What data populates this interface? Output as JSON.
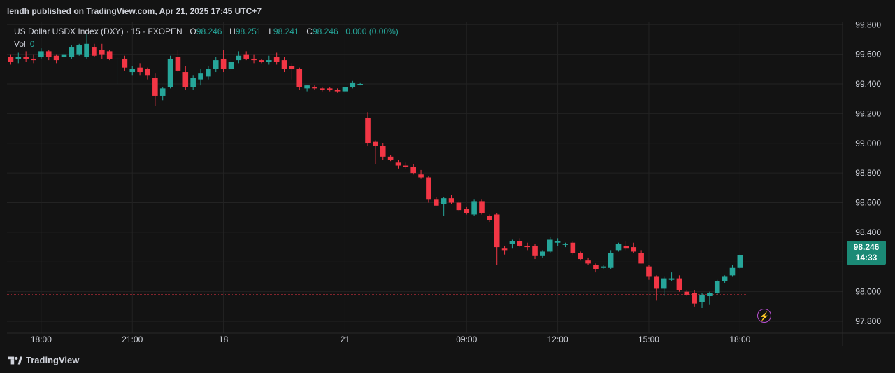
{
  "header": {
    "publish_line": "lendh published on TradingView.com, Apr 21, 2025 17:45 UTC+7"
  },
  "legend": {
    "symbol": "US Dollar USDX Index (DXY) · 15 · FXOPEN",
    "o_label": "O",
    "o_value": "98.246",
    "h_label": "H",
    "h_value": "98.251",
    "l_label": "L",
    "l_value": "98.241",
    "c_label": "C",
    "c_value": "98.246",
    "change": "0.000 (0.00%)",
    "vol_label": "Vol",
    "vol_value": "0"
  },
  "price_tag": {
    "price": "98.246",
    "countdown": "14:33"
  },
  "footer": {
    "brand": "TradingView",
    "alert_icon": "lightning-icon"
  },
  "colors": {
    "up": "#26a69a",
    "down": "#f23645",
    "background": "#131313",
    "grid": "#232323",
    "price_line": "#1b8a76",
    "ref_line": "#f23645"
  },
  "chart_data": {
    "type": "candlestick",
    "y_ticks": [
      "99.800",
      "99.600",
      "99.400",
      "99.200",
      "99.000",
      "98.800",
      "98.600",
      "98.400",
      "98.200",
      "98.000",
      "97.800"
    ],
    "ylim": [
      97.72,
      99.82
    ],
    "x_ticks": [
      {
        "label": "18:00",
        "index": 4.5
      },
      {
        "label": "21:00",
        "index": 16.5
      },
      {
        "label": "18",
        "index": 28.5
      },
      {
        "label": "21",
        "index": 44.5
      },
      {
        "label": "09:00",
        "index": 60.5
      },
      {
        "label": "12:00",
        "index": 72.5
      },
      {
        "label": "15:00",
        "index": 84.5
      },
      {
        "label": "18:00",
        "index": 96.5
      }
    ],
    "x_range": [
      0,
      110
    ],
    "last_price": 98.246,
    "reference_price": 97.98,
    "candles": [
      {
        "o": 99.58,
        "h": 99.6,
        "l": 99.53,
        "c": 99.55
      },
      {
        "o": 99.57,
        "h": 99.61,
        "l": 99.54,
        "c": 99.58
      },
      {
        "o": 99.58,
        "h": 99.62,
        "l": 99.55,
        "c": 99.57
      },
      {
        "o": 99.57,
        "h": 99.6,
        "l": 99.54,
        "c": 99.56
      },
      {
        "o": 99.58,
        "h": 99.64,
        "l": 99.57,
        "c": 99.62
      },
      {
        "o": 99.62,
        "h": 99.63,
        "l": 99.56,
        "c": 99.58
      },
      {
        "o": 99.59,
        "h": 99.6,
        "l": 99.54,
        "c": 99.56
      },
      {
        "o": 99.58,
        "h": 99.61,
        "l": 99.57,
        "c": 99.6
      },
      {
        "o": 99.58,
        "h": 99.66,
        "l": 99.57,
        "c": 99.65
      },
      {
        "o": 99.6,
        "h": 99.67,
        "l": 99.59,
        "c": 99.66
      },
      {
        "o": 99.58,
        "h": 99.74,
        "l": 99.57,
        "c": 99.67
      },
      {
        "o": 99.65,
        "h": 99.67,
        "l": 99.58,
        "c": 99.59
      },
      {
        "o": 99.63,
        "h": 99.67,
        "l": 99.57,
        "c": 99.6
      },
      {
        "o": 99.62,
        "h": 99.63,
        "l": 99.56,
        "c": 99.57
      },
      {
        "o": 99.57,
        "h": 99.58,
        "l": 99.4,
        "c": 99.57
      },
      {
        "o": 99.57,
        "h": 99.59,
        "l": 99.49,
        "c": 99.51
      },
      {
        "o": 99.48,
        "h": 99.52,
        "l": 99.46,
        "c": 99.5
      },
      {
        "o": 99.51,
        "h": 99.54,
        "l": 99.46,
        "c": 99.48
      },
      {
        "o": 99.5,
        "h": 99.51,
        "l": 99.43,
        "c": 99.46
      },
      {
        "o": 99.44,
        "h": 99.47,
        "l": 99.25,
        "c": 99.32
      },
      {
        "o": 99.32,
        "h": 99.38,
        "l": 99.29,
        "c": 99.37
      },
      {
        "o": 99.38,
        "h": 99.59,
        "l": 99.37,
        "c": 99.57
      },
      {
        "o": 99.58,
        "h": 99.63,
        "l": 99.48,
        "c": 99.49
      },
      {
        "o": 99.48,
        "h": 99.52,
        "l": 99.36,
        "c": 99.38
      },
      {
        "o": 99.38,
        "h": 99.46,
        "l": 99.36,
        "c": 99.44
      },
      {
        "o": 99.43,
        "h": 99.5,
        "l": 99.39,
        "c": 99.47
      },
      {
        "o": 99.45,
        "h": 99.52,
        "l": 99.43,
        "c": 99.5
      },
      {
        "o": 99.5,
        "h": 99.58,
        "l": 99.48,
        "c": 99.56
      },
      {
        "o": 99.57,
        "h": 99.63,
        "l": 99.48,
        "c": 99.5
      },
      {
        "o": 99.5,
        "h": 99.58,
        "l": 99.49,
        "c": 99.55
      },
      {
        "o": 99.56,
        "h": 99.62,
        "l": 99.54,
        "c": 99.59
      },
      {
        "o": 99.6,
        "h": 99.62,
        "l": 99.56,
        "c": 99.57
      },
      {
        "o": 99.57,
        "h": 99.6,
        "l": 99.54,
        "c": 99.56
      },
      {
        "o": 99.56,
        "h": 99.57,
        "l": 99.54,
        "c": 99.55
      },
      {
        "o": 99.55,
        "h": 99.59,
        "l": 99.53,
        "c": 99.56
      },
      {
        "o": 99.58,
        "h": 99.61,
        "l": 99.53,
        "c": 99.55
      },
      {
        "o": 99.56,
        "h": 99.58,
        "l": 99.48,
        "c": 99.5
      },
      {
        "o": 99.52,
        "h": 99.54,
        "l": 99.43,
        "c": 99.5
      },
      {
        "o": 99.5,
        "h": 99.51,
        "l": 99.36,
        "c": 99.38
      },
      {
        "o": 99.37,
        "h": 99.39,
        "l": 99.35,
        "c": 99.39
      },
      {
        "o": 99.38,
        "h": 99.39,
        "l": 99.36,
        "c": 99.37
      },
      {
        "o": 99.37,
        "h": 99.38,
        "l": 99.35,
        "c": 99.36
      },
      {
        "o": 99.37,
        "h": 99.38,
        "l": 99.35,
        "c": 99.36
      },
      {
        "o": 99.36,
        "h": 99.37,
        "l": 99.34,
        "c": 99.35
      },
      {
        "o": 99.35,
        "h": 99.38,
        "l": 99.34,
        "c": 99.38
      },
      {
        "o": 99.38,
        "h": 99.42,
        "l": 99.37,
        "c": 99.41
      },
      {
        "o": 99.4,
        "h": 99.41,
        "l": 99.39,
        "c": 99.4
      },
      {
        "o": 99.17,
        "h": 99.21,
        "l": 98.98,
        "c": 99.0
      },
      {
        "o": 99.01,
        "h": 99.02,
        "l": 98.86,
        "c": 98.98
      },
      {
        "o": 98.98,
        "h": 99.0,
        "l": 98.89,
        "c": 98.91
      },
      {
        "o": 98.91,
        "h": 98.92,
        "l": 98.88,
        "c": 98.89
      },
      {
        "o": 98.87,
        "h": 98.89,
        "l": 98.83,
        "c": 98.85
      },
      {
        "o": 98.85,
        "h": 98.87,
        "l": 98.83,
        "c": 98.84
      },
      {
        "o": 98.84,
        "h": 98.86,
        "l": 98.79,
        "c": 98.8
      },
      {
        "o": 98.79,
        "h": 98.82,
        "l": 98.76,
        "c": 98.77
      },
      {
        "o": 98.77,
        "h": 98.78,
        "l": 98.6,
        "c": 98.62
      },
      {
        "o": 98.62,
        "h": 98.64,
        "l": 98.58,
        "c": 98.58
      },
      {
        "o": 98.59,
        "h": 98.64,
        "l": 98.51,
        "c": 98.63
      },
      {
        "o": 98.63,
        "h": 98.65,
        "l": 98.59,
        "c": 98.6
      },
      {
        "o": 98.6,
        "h": 98.61,
        "l": 98.54,
        "c": 98.55
      },
      {
        "o": 98.56,
        "h": 98.57,
        "l": 98.52,
        "c": 98.53
      },
      {
        "o": 98.52,
        "h": 98.62,
        "l": 98.51,
        "c": 98.61
      },
      {
        "o": 98.61,
        "h": 98.62,
        "l": 98.52,
        "c": 98.53
      },
      {
        "o": 98.51,
        "h": 98.52,
        "l": 98.47,
        "c": 98.48
      },
      {
        "o": 98.52,
        "h": 98.53,
        "l": 98.18,
        "c": 98.3
      },
      {
        "o": 98.29,
        "h": 98.31,
        "l": 98.25,
        "c": 98.28
      },
      {
        "o": 98.32,
        "h": 98.35,
        "l": 98.29,
        "c": 98.34
      },
      {
        "o": 98.34,
        "h": 98.36,
        "l": 98.3,
        "c": 98.31
      },
      {
        "o": 98.31,
        "h": 98.33,
        "l": 98.28,
        "c": 98.3
      },
      {
        "o": 98.31,
        "h": 98.32,
        "l": 98.22,
        "c": 98.24
      },
      {
        "o": 98.24,
        "h": 98.28,
        "l": 98.23,
        "c": 98.27
      },
      {
        "o": 98.27,
        "h": 98.37,
        "l": 98.26,
        "c": 98.35
      },
      {
        "o": 98.33,
        "h": 98.36,
        "l": 98.31,
        "c": 98.34
      },
      {
        "o": 98.32,
        "h": 98.33,
        "l": 98.3,
        "c": 98.32
      },
      {
        "o": 98.33,
        "h": 98.34,
        "l": 98.25,
        "c": 98.26
      },
      {
        "o": 98.26,
        "h": 98.27,
        "l": 98.21,
        "c": 98.22
      },
      {
        "o": 98.21,
        "h": 98.23,
        "l": 98.18,
        "c": 98.19
      },
      {
        "o": 98.18,
        "h": 98.19,
        "l": 98.13,
        "c": 98.15
      },
      {
        "o": 98.16,
        "h": 98.18,
        "l": 98.15,
        "c": 98.17
      },
      {
        "o": 98.16,
        "h": 98.28,
        "l": 98.15,
        "c": 98.26
      },
      {
        "o": 98.28,
        "h": 98.33,
        "l": 98.27,
        "c": 98.32
      },
      {
        "o": 98.31,
        "h": 98.34,
        "l": 98.28,
        "c": 98.29
      },
      {
        "o": 98.3,
        "h": 98.33,
        "l": 98.26,
        "c": 98.27
      },
      {
        "o": 98.26,
        "h": 98.28,
        "l": 98.19,
        "c": 98.19
      },
      {
        "o": 98.17,
        "h": 98.18,
        "l": 98.08,
        "c": 98.1
      },
      {
        "o": 98.1,
        "h": 98.11,
        "l": 97.94,
        "c": 98.02
      },
      {
        "o": 98.02,
        "h": 98.1,
        "l": 97.97,
        "c": 98.09
      },
      {
        "o": 98.08,
        "h": 98.13,
        "l": 98.07,
        "c": 98.09
      },
      {
        "o": 98.09,
        "h": 98.11,
        "l": 98.0,
        "c": 98.01
      },
      {
        "o": 98.0,
        "h": 98.01,
        "l": 97.97,
        "c": 97.98
      },
      {
        "o": 97.99,
        "h": 98.01,
        "l": 97.9,
        "c": 97.92
      },
      {
        "o": 97.93,
        "h": 97.99,
        "l": 97.89,
        "c": 97.98
      },
      {
        "o": 97.97,
        "h": 98.0,
        "l": 97.91,
        "c": 97.99
      },
      {
        "o": 97.99,
        "h": 98.08,
        "l": 97.98,
        "c": 98.07
      },
      {
        "o": 98.07,
        "h": 98.11,
        "l": 98.06,
        "c": 98.1
      },
      {
        "o": 98.11,
        "h": 98.18,
        "l": 98.1,
        "c": 98.16
      },
      {
        "o": 98.16,
        "h": 98.25,
        "l": 98.15,
        "c": 98.246
      }
    ]
  }
}
